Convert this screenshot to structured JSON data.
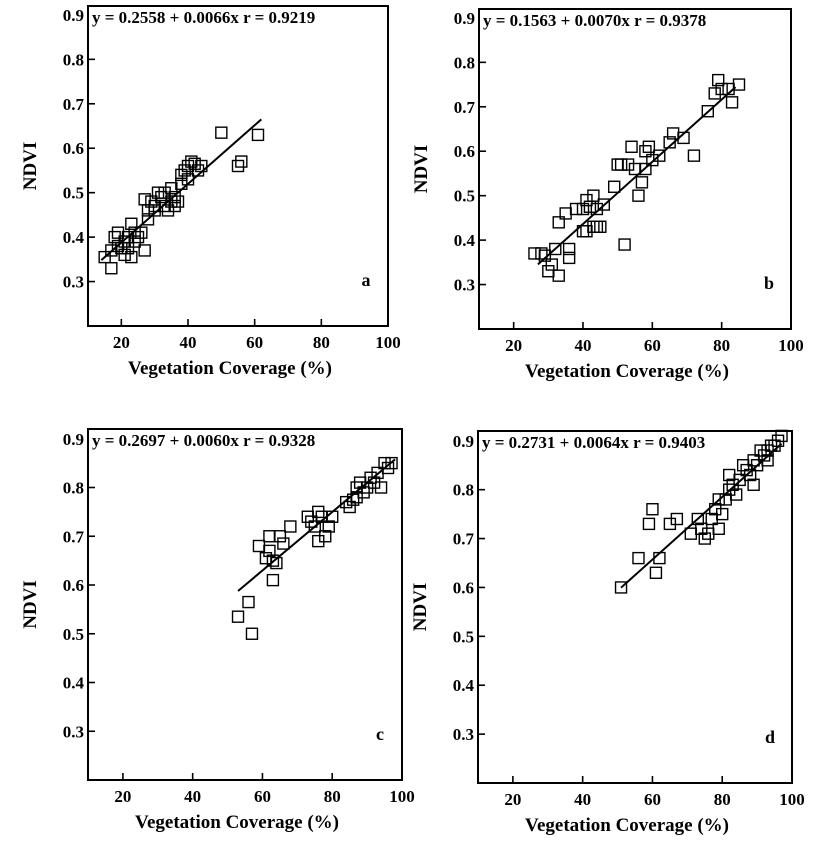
{
  "chart_data": [
    {
      "type": "scatter",
      "panel_label": "a",
      "equation": "y = 0.2558 + 0.0066x  r = 0.9219",
      "xlabel": "Vegetation Coverage (%)",
      "ylabel": "NDVI",
      "xlim": [
        10,
        100
      ],
      "ylim": [
        0.2,
        0.92
      ],
      "xticks": [
        "20",
        "40",
        "60",
        "80",
        "100"
      ],
      "yticks": [
        "0.3",
        "0.4",
        "0.5",
        "0.6",
        "0.7",
        "0.8",
        "0.9"
      ],
      "fit": {
        "intercept": 0.2558,
        "slope": 0.0066,
        "x_range": [
          14,
          62
        ]
      },
      "points": [
        [
          15,
          0.355
        ],
        [
          17,
          0.33
        ],
        [
          17,
          0.37
        ],
        [
          18,
          0.4
        ],
        [
          19,
          0.41
        ],
        [
          19,
          0.38
        ],
        [
          20,
          0.375
        ],
        [
          21,
          0.39
        ],
        [
          21,
          0.36
        ],
        [
          22,
          0.4
        ],
        [
          22,
          0.375
        ],
        [
          23,
          0.43
        ],
        [
          23,
          0.355
        ],
        [
          24,
          0.39
        ],
        [
          24,
          0.41
        ],
        [
          25,
          0.4
        ],
        [
          26,
          0.41
        ],
        [
          27,
          0.485
        ],
        [
          27,
          0.37
        ],
        [
          28,
          0.46
        ],
        [
          28,
          0.44
        ],
        [
          29,
          0.48
        ],
        [
          30,
          0.46
        ],
        [
          30,
          0.47
        ],
        [
          31,
          0.5
        ],
        [
          32,
          0.49
        ],
        [
          33,
          0.5
        ],
        [
          33,
          0.47
        ],
        [
          34,
          0.46
        ],
        [
          35,
          0.51
        ],
        [
          35,
          0.48
        ],
        [
          36,
          0.47
        ],
        [
          36,
          0.49
        ],
        [
          37,
          0.48
        ],
        [
          38,
          0.52
        ],
        [
          38,
          0.54
        ],
        [
          39,
          0.55
        ],
        [
          40,
          0.53
        ],
        [
          40,
          0.56
        ],
        [
          41,
          0.57
        ],
        [
          42,
          0.565
        ],
        [
          43,
          0.55
        ],
        [
          44,
          0.56
        ],
        [
          50,
          0.635
        ],
        [
          55,
          0.56
        ],
        [
          56,
          0.57
        ],
        [
          61,
          0.63
        ]
      ]
    },
    {
      "type": "scatter",
      "panel_label": "b",
      "equation": "y = 0.1563 + 0.0070x  r = 0.9378",
      "xlabel": "Vegetation Coverage (%)",
      "ylabel": "NDVI",
      "xlim": [
        10,
        100
      ],
      "ylim": [
        0.2,
        0.92
      ],
      "xticks": [
        "20",
        "40",
        "60",
        "80",
        "100"
      ],
      "yticks": [
        "0.3",
        "0.4",
        "0.5",
        "0.6",
        "0.7",
        "0.8",
        "0.9"
      ],
      "fit": {
        "intercept": 0.1563,
        "slope": 0.007,
        "x_range": [
          27,
          84
        ]
      },
      "points": [
        [
          26,
          0.37
        ],
        [
          28,
          0.37
        ],
        [
          29,
          0.365
        ],
        [
          30,
          0.33
        ],
        [
          31,
          0.345
        ],
        [
          32,
          0.38
        ],
        [
          33,
          0.32
        ],
        [
          33,
          0.44
        ],
        [
          35,
          0.46
        ],
        [
          36,
          0.38
        ],
        [
          36,
          0.36
        ],
        [
          38,
          0.47
        ],
        [
          40,
          0.47
        ],
        [
          40,
          0.42
        ],
        [
          41,
          0.49
        ],
        [
          41,
          0.42
        ],
        [
          42,
          0.475
        ],
        [
          43,
          0.5
        ],
        [
          43,
          0.43
        ],
        [
          44,
          0.43
        ],
        [
          44,
          0.47
        ],
        [
          45,
          0.43
        ],
        [
          46,
          0.48
        ],
        [
          49,
          0.52
        ],
        [
          50,
          0.57
        ],
        [
          51,
          0.57
        ],
        [
          52,
          0.39
        ],
        [
          53,
          0.57
        ],
        [
          54,
          0.61
        ],
        [
          55,
          0.56
        ],
        [
          56,
          0.5
        ],
        [
          57,
          0.53
        ],
        [
          58,
          0.56
        ],
        [
          58,
          0.6
        ],
        [
          59,
          0.61
        ],
        [
          60,
          0.58
        ],
        [
          62,
          0.59
        ],
        [
          65,
          0.62
        ],
        [
          66,
          0.64
        ],
        [
          69,
          0.63
        ],
        [
          72,
          0.59
        ],
        [
          76,
          0.69
        ],
        [
          78,
          0.73
        ],
        [
          79,
          0.76
        ],
        [
          80,
          0.74
        ],
        [
          82,
          0.74
        ],
        [
          83,
          0.71
        ],
        [
          85,
          0.75
        ]
      ]
    },
    {
      "type": "scatter",
      "panel_label": "c",
      "equation": "y = 0.2697 + 0.0060x  r = 0.9328",
      "xlabel": "Vegetation Coverage (%)",
      "ylabel": "NDVI",
      "xlim": [
        10,
        100
      ],
      "ylim": [
        0.2,
        0.92
      ],
      "xticks": [
        "20",
        "40",
        "60",
        "80",
        "100"
      ],
      "yticks": [
        "0.3",
        "0.4",
        "0.5",
        "0.6",
        "0.7",
        "0.8",
        "0.9"
      ],
      "fit": {
        "intercept": 0.2697,
        "slope": 0.006,
        "x_range": [
          53,
          98
        ]
      },
      "points": [
        [
          53,
          0.535
        ],
        [
          56,
          0.565
        ],
        [
          57,
          0.5
        ],
        [
          59,
          0.68
        ],
        [
          61,
          0.655
        ],
        [
          62,
          0.67
        ],
        [
          62,
          0.7
        ],
        [
          63,
          0.61
        ],
        [
          63,
          0.65
        ],
        [
          64,
          0.645
        ],
        [
          65,
          0.7
        ],
        [
          66,
          0.685
        ],
        [
          68,
          0.72
        ],
        [
          73,
          0.74
        ],
        [
          74,
          0.73
        ],
        [
          75,
          0.72
        ],
        [
          76,
          0.69
        ],
        [
          76,
          0.75
        ],
        [
          77,
          0.74
        ],
        [
          78,
          0.7
        ],
        [
          79,
          0.72
        ],
        [
          80,
          0.74
        ],
        [
          84,
          0.77
        ],
        [
          85,
          0.76
        ],
        [
          86,
          0.775
        ],
        [
          87,
          0.8
        ],
        [
          87,
          0.78
        ],
        [
          88,
          0.81
        ],
        [
          89,
          0.79
        ],
        [
          90,
          0.8
        ],
        [
          91,
          0.82
        ],
        [
          92,
          0.81
        ],
        [
          93,
          0.83
        ],
        [
          94,
          0.8
        ],
        [
          95,
          0.85
        ],
        [
          96,
          0.84
        ],
        [
          97,
          0.85
        ]
      ]
    },
    {
      "type": "scatter",
      "panel_label": "d",
      "equation": "y = 0.2731 + 0.0064x  r = 0.9403",
      "xlabel": "Vegetation Coverage (%)",
      "ylabel": "NDVI",
      "xlim": [
        10,
        100
      ],
      "ylim": [
        0.2,
        0.92
      ],
      "xticks": [
        "20",
        "40",
        "60",
        "80",
        "100"
      ],
      "yticks": [
        "0.3",
        "0.4",
        "0.5",
        "0.6",
        "0.7",
        "0.8",
        "0.9"
      ],
      "fit": {
        "intercept": 0.2731,
        "slope": 0.0064,
        "x_range": [
          51,
          97
        ]
      },
      "points": [
        [
          51,
          0.6
        ],
        [
          56,
          0.66
        ],
        [
          59,
          0.73
        ],
        [
          60,
          0.76
        ],
        [
          61,
          0.63
        ],
        [
          62,
          0.66
        ],
        [
          65,
          0.73
        ],
        [
          67,
          0.74
        ],
        [
          71,
          0.71
        ],
        [
          73,
          0.74
        ],
        [
          74,
          0.72
        ],
        [
          75,
          0.7
        ],
        [
          76,
          0.71
        ],
        [
          77,
          0.74
        ],
        [
          78,
          0.76
        ],
        [
          79,
          0.78
        ],
        [
          79,
          0.72
        ],
        [
          80,
          0.75
        ],
        [
          81,
          0.78
        ],
        [
          82,
          0.8
        ],
        [
          82,
          0.83
        ],
        [
          83,
          0.81
        ],
        [
          84,
          0.79
        ],
        [
          85,
          0.82
        ],
        [
          86,
          0.85
        ],
        [
          87,
          0.84
        ],
        [
          88,
          0.83
        ],
        [
          89,
          0.81
        ],
        [
          89,
          0.86
        ],
        [
          90,
          0.85
        ],
        [
          91,
          0.88
        ],
        [
          92,
          0.87
        ],
        [
          93,
          0.88
        ],
        [
          93,
          0.86
        ],
        [
          94,
          0.89
        ],
        [
          95,
          0.89
        ],
        [
          96,
          0.9
        ],
        [
          97,
          0.91
        ]
      ]
    }
  ]
}
